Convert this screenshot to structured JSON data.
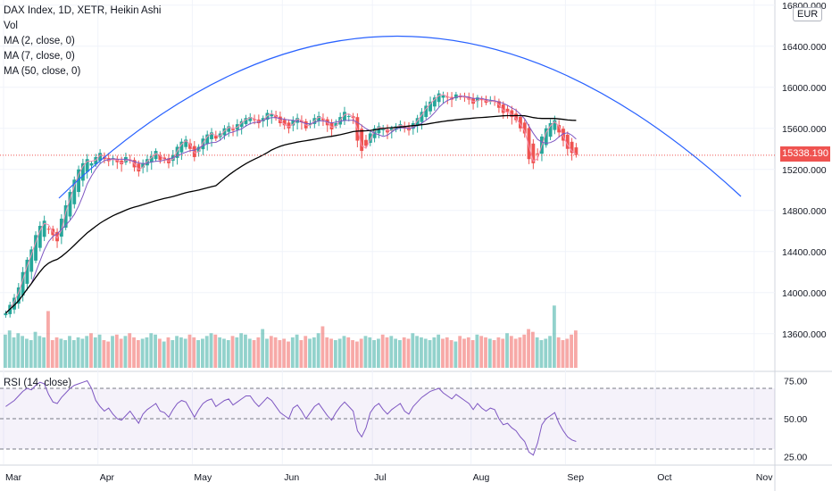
{
  "legend": {
    "title": "DAX Index, 1D, XETR, Heikin Ashi",
    "vol": "Vol",
    "ma2": "MA (2, close, 0)",
    "ma7": "MA (7, close, 0)",
    "ma50": "MA (50, close, 0)"
  },
  "currency": "EUR",
  "current_price": "15338.190",
  "rsi_title": "RSI (14, close)",
  "colors": {
    "up": "#26a69a",
    "down": "#ef5350",
    "arc": "#2962ff",
    "ma50": "#000000",
    "rsi": "#7e57c2"
  },
  "chart_data": [
    {
      "type": "candlestick",
      "title": "DAX Index, 1D, XETR, Heikin Ashi",
      "y_axis_ticks": [
        "16800.000",
        "16400.000",
        "16000.000",
        "15600.000",
        "15200.000",
        "14800.000",
        "14400.000",
        "14000.000",
        "13600.000"
      ],
      "x_axis_ticks": [
        "Mar",
        "Apr",
        "May",
        "Jun",
        "Jul",
        "Aug",
        "Sep",
        "Oct",
        "Nov"
      ],
      "ylim": [
        13250,
        16850
      ],
      "last_price": 15338.19,
      "ha_close": [
        13800,
        13880,
        13950,
        14050,
        14200,
        14320,
        14420,
        14560,
        14650,
        14700,
        14620,
        14560,
        14500,
        14720,
        14850,
        14980,
        15100,
        15200,
        15260,
        15300,
        15260,
        15320,
        15360,
        15300,
        15280,
        15310,
        15270,
        15250,
        15320,
        15290,
        15220,
        15180,
        15260,
        15300,
        15330,
        15380,
        15290,
        15300,
        15260,
        15340,
        15420,
        15470,
        15490,
        15400,
        15320,
        15420,
        15500,
        15540,
        15560,
        15500,
        15550,
        15600,
        15620,
        15580,
        15640,
        15670,
        15700,
        15710,
        15680,
        15650,
        15700,
        15750,
        15740,
        15700,
        15650,
        15630,
        15600,
        15680,
        15700,
        15660,
        15600,
        15650,
        15700,
        15720,
        15680,
        15630,
        15590,
        15650,
        15710,
        15760,
        15720,
        15700,
        15480,
        15380,
        15430,
        15550,
        15600,
        15620,
        15590,
        15560,
        15600,
        15620,
        15640,
        15600,
        15580,
        15650,
        15700,
        15760,
        15820,
        15860,
        15900,
        15940,
        15920,
        15900,
        15880,
        15930,
        15910,
        15900,
        15880,
        15840,
        15900,
        15880,
        15850,
        15870,
        15860,
        15800,
        15750,
        15760,
        15710,
        15680,
        15600,
        15550,
        15300,
        15260,
        15350,
        15520,
        15600,
        15650,
        15680,
        15560,
        15480,
        15400,
        15360,
        15340
      ],
      "volume": [
        24,
        27,
        22,
        25,
        23,
        21,
        20,
        26,
        23,
        22,
        41,
        20,
        22,
        21,
        20,
        23,
        20,
        22,
        21,
        23,
        25,
        22,
        24,
        20,
        19,
        23,
        24,
        21,
        23,
        25,
        22,
        20,
        21,
        22,
        25,
        24,
        21,
        19,
        22,
        20,
        23,
        22,
        21,
        24,
        22,
        20,
        21,
        23,
        25,
        24,
        22,
        21,
        20,
        23,
        22,
        25,
        24,
        21,
        20,
        22,
        28,
        21,
        23,
        22,
        20,
        21,
        19,
        22,
        24,
        20,
        23,
        21,
        22,
        25,
        30,
        22,
        21,
        20,
        21,
        23,
        22,
        20,
        19,
        21,
        23,
        22,
        20,
        21,
        24,
        22,
        23,
        21,
        20,
        22,
        21,
        25,
        23,
        22,
        21,
        20,
        22,
        24,
        21,
        22,
        20,
        19,
        23,
        21,
        22,
        20,
        24,
        23,
        22,
        21,
        20,
        22,
        21,
        25,
        23,
        21,
        22,
        24,
        28,
        26,
        22,
        20,
        21,
        23,
        45,
        22,
        20,
        21,
        24,
        27
      ],
      "series": [
        {
          "name": "MA (2, close, 0)"
        },
        {
          "name": "MA (7, close, 0)"
        },
        {
          "name": "MA (50, close, 0)"
        }
      ]
    },
    {
      "type": "line",
      "title": "RSI (14, close)",
      "y_axis_ticks": [
        "75.00",
        "50.00",
        "25.00"
      ],
      "ylim": [
        20,
        80
      ],
      "values": [
        58,
        60,
        62,
        65,
        68,
        70,
        69,
        72,
        74,
        73,
        66,
        61,
        60,
        64,
        67,
        70,
        72,
        73,
        74,
        75,
        70,
        62,
        58,
        55,
        57,
        53,
        50,
        49,
        52,
        55,
        51,
        47,
        53,
        56,
        58,
        60,
        55,
        54,
        51,
        56,
        60,
        62,
        61,
        56,
        51,
        56,
        60,
        62,
        63,
        58,
        60,
        62,
        63,
        59,
        61,
        63,
        65,
        65,
        61,
        58,
        61,
        64,
        62,
        58,
        54,
        52,
        50,
        57,
        59,
        55,
        50,
        54,
        58,
        60,
        56,
        52,
        49,
        54,
        58,
        61,
        58,
        55,
        42,
        38,
        44,
        54,
        58,
        60,
        56,
        53,
        56,
        58,
        60,
        55,
        53,
        58,
        61,
        64,
        66,
        68,
        69,
        70,
        67,
        65,
        63,
        66,
        64,
        62,
        60,
        56,
        60,
        57,
        55,
        57,
        56,
        50,
        46,
        47,
        44,
        42,
        38,
        35,
        28,
        26,
        34,
        46,
        50,
        52,
        54,
        47,
        42,
        38,
        36,
        35
      ]
    }
  ]
}
